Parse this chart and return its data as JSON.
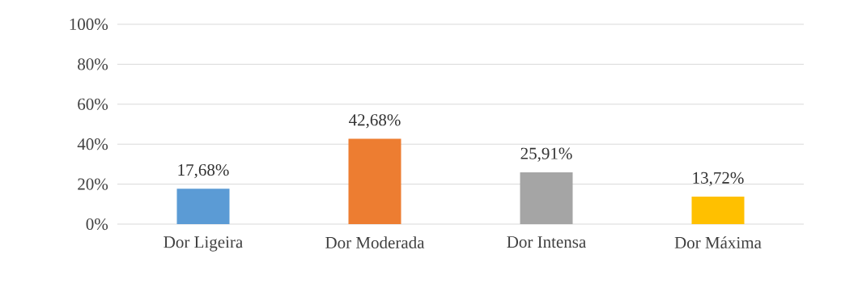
{
  "chart_data": {
    "type": "bar",
    "categories": [
      "Dor Ligeira",
      "Dor Moderada",
      "Dor Intensa",
      "Dor Máxima"
    ],
    "values": [
      17.68,
      42.68,
      25.91,
      13.72
    ],
    "colors": [
      "#5b9bd5",
      "#ed7d31",
      "#a5a5a5",
      "#ffc000"
    ],
    "value_labels": [
      "17,68%",
      "42,68%",
      "25,91%",
      "13,72%"
    ],
    "ylim": [
      0,
      100
    ],
    "yticks": [
      {
        "value": 0,
        "label": "0%"
      },
      {
        "value": 20,
        "label": "20%"
      },
      {
        "value": 40,
        "label": "40%"
      },
      {
        "value": 60,
        "label": "60%"
      },
      {
        "value": 80,
        "label": "80%"
      },
      {
        "value": 100,
        "label": "100%"
      }
    ],
    "grid": "y"
  }
}
